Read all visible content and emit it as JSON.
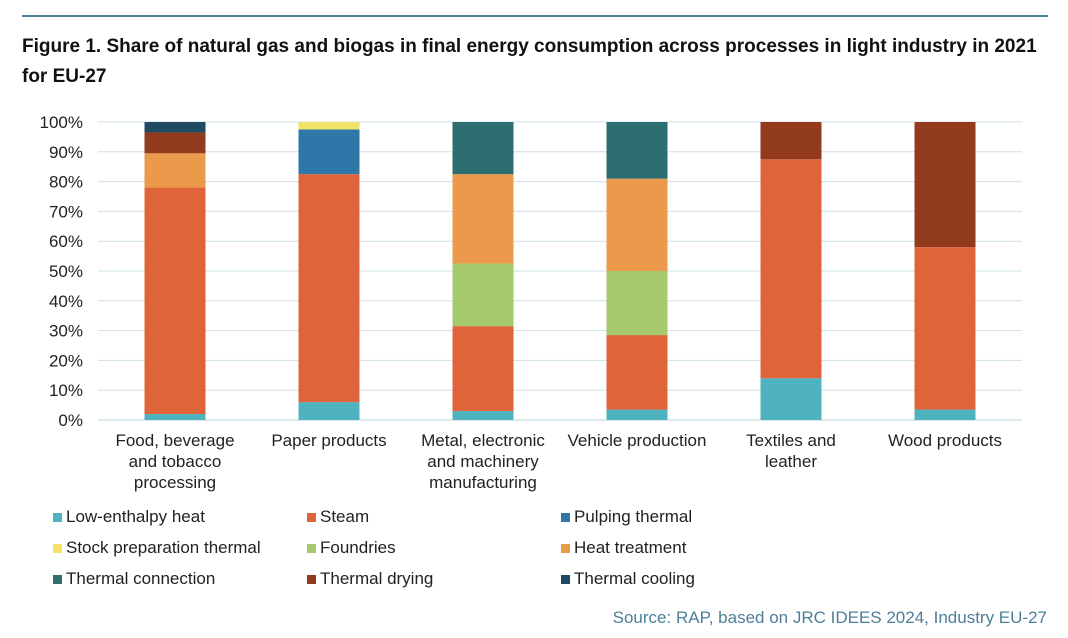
{
  "title": "Figure 1. Share of natural gas and biogas in final energy consumption across processes in light industry in 2021 for EU-27",
  "source": "Source: RAP, based on JRC IDEES 2024, Industry EU-27",
  "chart_data": {
    "type": "bar",
    "stacked": true,
    "categories": [
      [
        "Food, beverage",
        "and tobacco",
        "processing"
      ],
      [
        "Paper products"
      ],
      [
        "Metal, electronic",
        "and machinery",
        "manufacturing"
      ],
      [
        "Vehicle production"
      ],
      [
        "Textiles and",
        "leather"
      ],
      [
        "Wood products"
      ]
    ],
    "y_ticks": [
      "0%",
      "10%",
      "20%",
      "30%",
      "40%",
      "50%",
      "60%",
      "70%",
      "80%",
      "90%",
      "100%"
    ],
    "ylim": [
      0,
      100
    ],
    "grid": true,
    "legend_position": "bottom",
    "series": [
      {
        "name": "Low-enthalpy heat",
        "color": "#4fb3bf",
        "values": [
          2,
          6,
          3,
          3.5,
          14,
          3.5
        ]
      },
      {
        "name": "Steam",
        "color": "#e0643a",
        "values": [
          76,
          76.5,
          28.5,
          25,
          73.5,
          54.5
        ]
      },
      {
        "name": "Pulping thermal",
        "color": "#2e77a8",
        "values": [
          0,
          15,
          0,
          0,
          0,
          0
        ]
      },
      {
        "name": "Stock preparation thermal",
        "color": "#f2e266",
        "values": [
          0,
          2.5,
          0,
          0,
          0,
          0
        ]
      },
      {
        "name": "Foundries",
        "color": "#a3c96a",
        "values": [
          0,
          0,
          21,
          21.5,
          0,
          0
        ]
      },
      {
        "name": "Heat treatment",
        "color": "#ea9a4a",
        "values": [
          11.5,
          0,
          30,
          31,
          0,
          0
        ]
      },
      {
        "name": "Thermal connection",
        "color": "#2e6e70",
        "values": [
          0,
          0,
          17.5,
          19,
          0,
          0
        ]
      },
      {
        "name": "Thermal drying",
        "color": "#923a1e",
        "values": [
          7,
          0,
          0,
          0,
          12.5,
          42
        ]
      },
      {
        "name": "Thermal cooling",
        "color": "#1e4a62",
        "values": [
          3.5,
          0,
          0,
          0,
          0,
          0
        ]
      }
    ]
  }
}
